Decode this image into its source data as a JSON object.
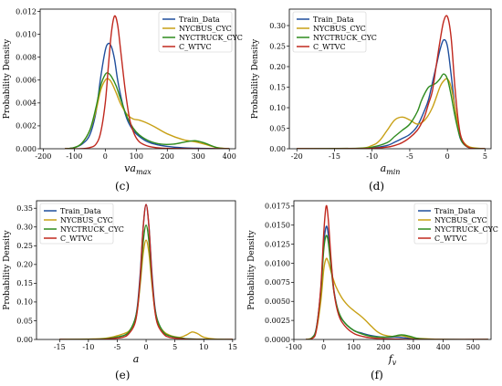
{
  "chart_data": [
    {
      "type": "line",
      "panel_label": "(c)",
      "xlabel": "va",
      "xlabel_sub": "max",
      "ylabel": "Probability Density",
      "xlim": [
        -210,
        420
      ],
      "ylim": [
        0,
        0.0122
      ],
      "xticks": [
        -200,
        -100,
        0,
        100,
        200,
        300,
        400
      ],
      "yticks": [
        0.0,
        0.002,
        0.004,
        0.006,
        0.008,
        0.01,
        0.012
      ],
      "ytick_labels": [
        "0.000",
        "0.002",
        "0.004",
        "0.006",
        "0.008",
        "0.010",
        "0.012"
      ],
      "legend_position": "top-right",
      "series": [
        {
          "name": "Train_Data",
          "color": "#1f4e9c",
          "x": [
            -130,
            -100,
            -75,
            -50,
            -30,
            -15,
            0,
            10,
            20,
            30,
            40,
            55,
            70,
            85,
            100,
            130,
            160,
            200,
            250,
            300,
            350,
            400
          ],
          "y": [
            0,
            0.0001,
            0.0004,
            0.0012,
            0.0032,
            0.0062,
            0.0086,
            0.0092,
            0.0089,
            0.0078,
            0.006,
            0.004,
            0.0026,
            0.0018,
            0.0013,
            0.0007,
            0.0004,
            0.0002,
            8e-05,
            4e-05,
            1e-05,
            0
          ]
        },
        {
          "name": "NYCBUS_CYC",
          "color": "#c8a015",
          "x": [
            -130,
            -100,
            -75,
            -50,
            -30,
            -15,
            0,
            10,
            20,
            35,
            50,
            70,
            90,
            110,
            130,
            160,
            200,
            250,
            290,
            320,
            360,
            400
          ],
          "y": [
            0,
            0.0001,
            0.0005,
            0.0016,
            0.0033,
            0.0051,
            0.006,
            0.0061,
            0.0058,
            0.0049,
            0.0039,
            0.003,
            0.0026,
            0.0025,
            0.0023,
            0.0019,
            0.0013,
            0.0008,
            0.0006,
            0.0004,
            0.0001,
            0
          ]
        },
        {
          "name": "NYCTRUCK_CYC",
          "color": "#2e8b1e",
          "x": [
            -130,
            -100,
            -75,
            -50,
            -30,
            -15,
            0,
            10,
            20,
            35,
            50,
            70,
            90,
            110,
            140,
            180,
            220,
            260,
            290,
            320,
            360,
            400
          ],
          "y": [
            0,
            0.0001,
            0.0005,
            0.0016,
            0.0036,
            0.0055,
            0.0065,
            0.0066,
            0.0063,
            0.0055,
            0.0043,
            0.0028,
            0.0018,
            0.0012,
            0.0007,
            0.0004,
            0.0004,
            0.0006,
            0.0007,
            0.0005,
            0.0001,
            0
          ]
        },
        {
          "name": "C_WTVC",
          "color": "#c0281e",
          "x": [
            -130,
            -80,
            -50,
            -30,
            -15,
            0,
            10,
            20,
            30,
            40,
            50,
            65,
            80,
            95,
            110,
            130,
            150,
            180,
            220,
            280,
            350,
            400
          ],
          "y": [
            0,
            0,
            0.0001,
            0.0004,
            0.0014,
            0.004,
            0.0072,
            0.0102,
            0.0116,
            0.0108,
            0.0085,
            0.005,
            0.0024,
            0.0012,
            0.0006,
            0.0003,
            0.00015,
            5e-05,
            2e-05,
            0,
            0,
            0
          ]
        }
      ]
    },
    {
      "type": "line",
      "panel_label": "(d)",
      "xlabel": "a",
      "xlabel_sub": "min",
      "ylabel": "Probability Density",
      "xlim": [
        -21,
        5.8
      ],
      "ylim": [
        0,
        0.34
      ],
      "xticks": [
        -20,
        -15,
        -10,
        -5,
        0,
        5
      ],
      "yticks": [
        0.0,
        0.05,
        0.1,
        0.15,
        0.2,
        0.25,
        0.3
      ],
      "ytick_labels": [
        "0.00",
        "0.05",
        "0.10",
        "0.15",
        "0.20",
        "0.25",
        "0.30"
      ],
      "legend_position": "top-left",
      "series": [
        {
          "name": "Train_Data",
          "color": "#1f4e9c",
          "x": [
            -20,
            -12,
            -10,
            -8,
            -7,
            -6,
            -5,
            -4,
            -3,
            -2.5,
            -2,
            -1.5,
            -1,
            -0.5,
            0,
            0.5,
            1,
            1.5,
            2,
            3,
            5
          ],
          "y": [
            0,
            0.0005,
            0.002,
            0.008,
            0.016,
            0.025,
            0.035,
            0.055,
            0.095,
            0.12,
            0.16,
            0.2,
            0.24,
            0.265,
            0.25,
            0.18,
            0.1,
            0.04,
            0.015,
            0.002,
            0
          ]
        },
        {
          "name": "NYCBUS_CYC",
          "color": "#c8a015",
          "x": [
            -20,
            -12,
            -10,
            -9,
            -8,
            -7,
            -6,
            -5,
            -4,
            -3,
            -2,
            -1,
            -0.5,
            0,
            0.5,
            1,
            1.5,
            2,
            3,
            5
          ],
          "y": [
            0,
            0.001,
            0.008,
            0.02,
            0.045,
            0.07,
            0.077,
            0.07,
            0.06,
            0.07,
            0.1,
            0.15,
            0.165,
            0.17,
            0.15,
            0.1,
            0.05,
            0.02,
            0.004,
            0
          ]
        },
        {
          "name": "NYCTRUCK_CYC",
          "color": "#2e8b1e",
          "x": [
            -20,
            -12,
            -10,
            -8,
            -7,
            -6,
            -5,
            -4,
            -3.5,
            -3,
            -2.5,
            -2,
            -1.5,
            -1,
            -0.5,
            0,
            0.5,
            1,
            1.5,
            2,
            3,
            5
          ],
          "y": [
            0,
            0.001,
            0.004,
            0.015,
            0.03,
            0.045,
            0.06,
            0.09,
            0.115,
            0.135,
            0.15,
            0.155,
            0.16,
            0.17,
            0.182,
            0.17,
            0.13,
            0.08,
            0.04,
            0.015,
            0.002,
            0
          ]
        },
        {
          "name": "C_WTVC",
          "color": "#c0281e",
          "x": [
            -20,
            -12,
            -10,
            -8,
            -7,
            -6,
            -5,
            -4,
            -3.5,
            -3,
            -2.5,
            -2,
            -1.5,
            -1,
            -0.5,
            0,
            0.5,
            1,
            1.5,
            2,
            3,
            5
          ],
          "y": [
            0,
            0,
            0.001,
            0.004,
            0.008,
            0.015,
            0.027,
            0.045,
            0.06,
            0.08,
            0.11,
            0.14,
            0.2,
            0.26,
            0.31,
            0.322,
            0.27,
            0.15,
            0.06,
            0.02,
            0.002,
            0
          ]
        }
      ]
    },
    {
      "type": "line",
      "panel_label": "(e)",
      "xlabel": "a",
      "xlabel_sub": "",
      "ylabel": "Probability Density",
      "xlim": [
        -19,
        15.5
      ],
      "ylim": [
        0,
        0.37
      ],
      "xticks": [
        -15,
        -10,
        -5,
        0,
        5,
        10,
        15
      ],
      "yticks": [
        0.0,
        0.05,
        0.1,
        0.15,
        0.2,
        0.25,
        0.3,
        0.35
      ],
      "ytick_labels": [
        "0.00",
        "0.05",
        "0.10",
        "0.15",
        "0.20",
        "0.25",
        "0.30",
        "0.35"
      ],
      "legend_position": "top-left",
      "series": [
        {
          "name": "Train_Data",
          "color": "#1f4e9c",
          "x": [
            -15,
            -8,
            -6,
            -4,
            -3,
            -2,
            -1.5,
            -1,
            -0.5,
            0,
            0.5,
            1,
            1.5,
            2,
            3,
            4,
            6,
            8,
            15
          ],
          "y": [
            0,
            0.001,
            0.004,
            0.01,
            0.02,
            0.05,
            0.09,
            0.18,
            0.3,
            0.36,
            0.3,
            0.18,
            0.09,
            0.05,
            0.02,
            0.01,
            0.004,
            0.001,
            0
          ]
        },
        {
          "name": "NYCBUS_CYC",
          "color": "#c8a015",
          "x": [
            -15,
            -8,
            -6,
            -5,
            -4,
            -3,
            -2,
            -1.5,
            -1,
            -0.5,
            0,
            0.5,
            1,
            1.5,
            2,
            3,
            4,
            5,
            6,
            7,
            8,
            9,
            10,
            12,
            15
          ],
          "y": [
            0,
            0.002,
            0.006,
            0.01,
            0.015,
            0.022,
            0.045,
            0.08,
            0.15,
            0.23,
            0.265,
            0.23,
            0.15,
            0.08,
            0.045,
            0.022,
            0.012,
            0.007,
            0.006,
            0.012,
            0.02,
            0.015,
            0.006,
            0.001,
            0
          ]
        },
        {
          "name": "NYCTRUCK_CYC",
          "color": "#2e8b1e",
          "x": [
            -15,
            -8,
            -6,
            -4,
            -3,
            -2,
            -1.5,
            -1,
            -0.5,
            0,
            0.5,
            1,
            1.5,
            2,
            3,
            4,
            6,
            8,
            15
          ],
          "y": [
            0,
            0.001,
            0.004,
            0.01,
            0.02,
            0.05,
            0.085,
            0.16,
            0.26,
            0.305,
            0.26,
            0.16,
            0.085,
            0.05,
            0.02,
            0.01,
            0.004,
            0.001,
            0
          ]
        },
        {
          "name": "C_WTVC",
          "color": "#c0281e",
          "x": [
            -15,
            -8,
            -6,
            -4,
            -3,
            -2,
            -1.5,
            -1,
            -0.5,
            0,
            0.5,
            1,
            1.5,
            2,
            3,
            4,
            6,
            8,
            15
          ],
          "y": [
            0,
            0,
            0.002,
            0.006,
            0.015,
            0.04,
            0.08,
            0.17,
            0.3,
            0.36,
            0.3,
            0.17,
            0.08,
            0.04,
            0.015,
            0.006,
            0.002,
            0,
            0
          ]
        }
      ]
    },
    {
      "type": "line",
      "panel_label": "(f)",
      "xlabel": "f",
      "xlabel_sub": "v",
      "ylabel": "Probability Density",
      "xlim": [
        -100,
        560
      ],
      "ylim": [
        0,
        0.0182
      ],
      "xticks": [
        -100,
        0,
        100,
        200,
        300,
        400,
        500
      ],
      "yticks": [
        0.0,
        0.0025,
        0.005,
        0.0075,
        0.01,
        0.0125,
        0.015,
        0.0175
      ],
      "ytick_labels": [
        "0.0000",
        "0.0025",
        "0.0050",
        "0.0075",
        "0.0100",
        "0.0125",
        "0.0150",
        "0.0175"
      ],
      "legend_position": "top-right",
      "series": [
        {
          "name": "Train_Data",
          "color": "#1f4e9c",
          "x": [
            -60,
            -40,
            -25,
            -10,
            0,
            8,
            15,
            25,
            35,
            50,
            70,
            100,
            130,
            160,
            200,
            250,
            300,
            400,
            550
          ],
          "y": [
            0,
            0.0002,
            0.0015,
            0.0065,
            0.0125,
            0.0148,
            0.0138,
            0.0098,
            0.0062,
            0.0035,
            0.0022,
            0.0012,
            0.0008,
            0.0005,
            0.0003,
            0.0003,
            0.0001,
            0,
            0
          ]
        },
        {
          "name": "NYCBUS_CYC",
          "color": "#c8a015",
          "x": [
            -60,
            -40,
            -25,
            -10,
            0,
            8,
            15,
            25,
            40,
            60,
            80,
            100,
            120,
            140,
            160,
            180,
            200,
            230,
            260,
            300,
            400,
            550
          ],
          "y": [
            0,
            0.0002,
            0.0012,
            0.005,
            0.0092,
            0.0106,
            0.0102,
            0.0088,
            0.007,
            0.0055,
            0.0045,
            0.0038,
            0.0032,
            0.0025,
            0.0017,
            0.001,
            0.0006,
            0.0004,
            0.0005,
            0.0002,
            0,
            0
          ]
        },
        {
          "name": "NYCTRUCK_CYC",
          "color": "#2e8b1e",
          "x": [
            -60,
            -40,
            -25,
            -10,
            0,
            8,
            15,
            25,
            35,
            50,
            70,
            100,
            130,
            160,
            200,
            230,
            260,
            290,
            320,
            400,
            550
          ],
          "y": [
            0,
            0.0002,
            0.0014,
            0.0062,
            0.0118,
            0.0136,
            0.0128,
            0.0092,
            0.006,
            0.0036,
            0.0022,
            0.0012,
            0.0007,
            0.0004,
            0.0003,
            0.0004,
            0.0006,
            0.0004,
            0.0001,
            0,
            0
          ]
        },
        {
          "name": "C_WTVC",
          "color": "#c0281e",
          "x": [
            -60,
            -40,
            -25,
            -10,
            0,
            8,
            15,
            25,
            35,
            50,
            70,
            100,
            130,
            160,
            200,
            300,
            550
          ],
          "y": [
            0,
            0.0001,
            0.0012,
            0.0068,
            0.014,
            0.0175,
            0.0158,
            0.0102,
            0.006,
            0.0032,
            0.0018,
            0.0008,
            0.0004,
            0.0002,
            0.0001,
            0,
            0
          ]
        }
      ]
    }
  ]
}
